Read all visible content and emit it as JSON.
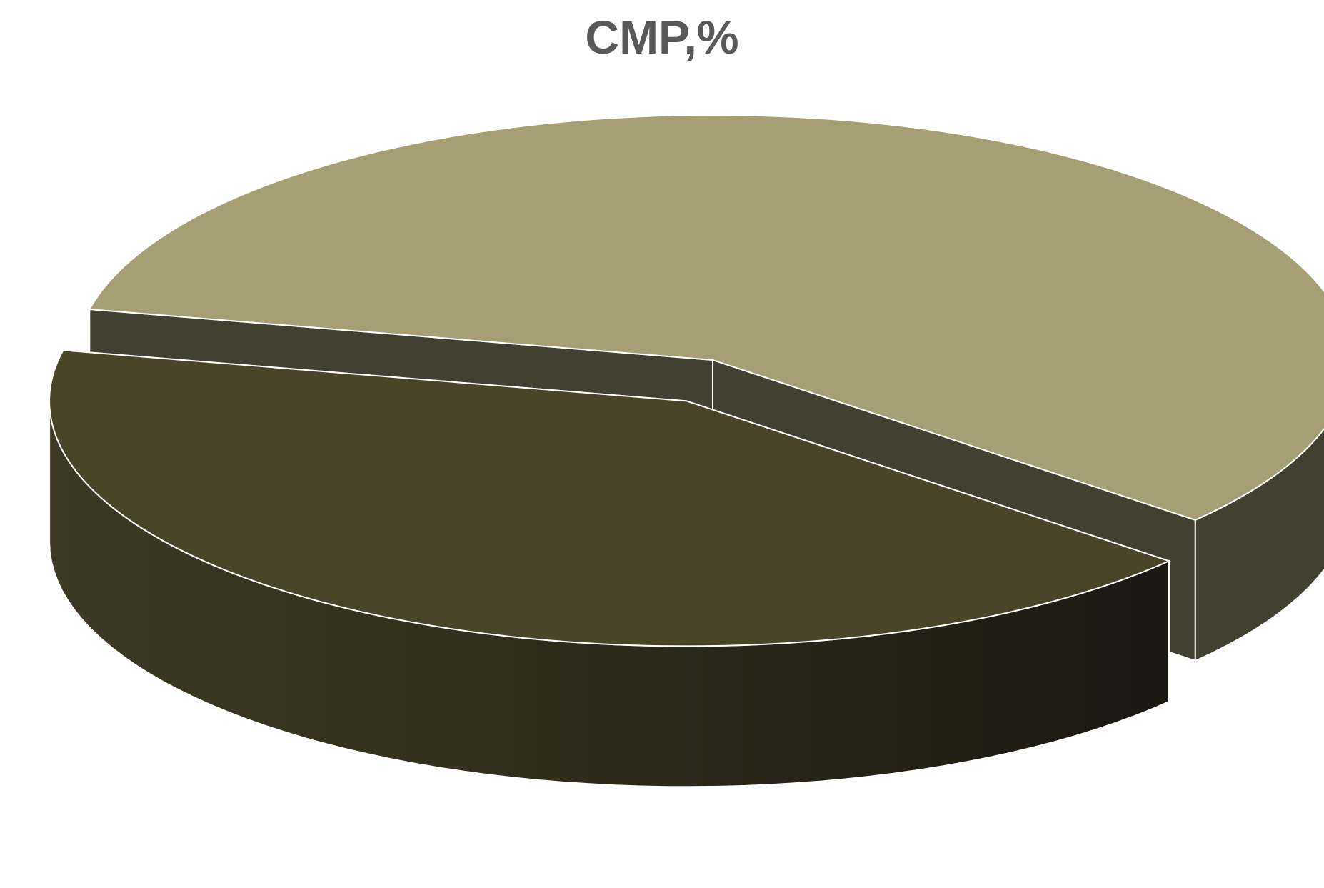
{
  "chart_data": {
    "type": "pie",
    "title": "CMP,%",
    "style": "3d-exploded",
    "legend": "none",
    "data_labels": "none",
    "slices": [
      {
        "value": 58,
        "color": "#a69e74",
        "side_color": "#424030",
        "exploded": false
      },
      {
        "value": 42,
        "color": "#4a4528",
        "side_color": "#2c2a1c",
        "exploded": true
      }
    ]
  },
  "colors": {
    "title": "#595959",
    "slice_edge": "#ffffff",
    "side_gradient_light": "#3d3924",
    "side_gradient_mid": "#36311f",
    "side_gradient_dark": "#1a1811"
  }
}
